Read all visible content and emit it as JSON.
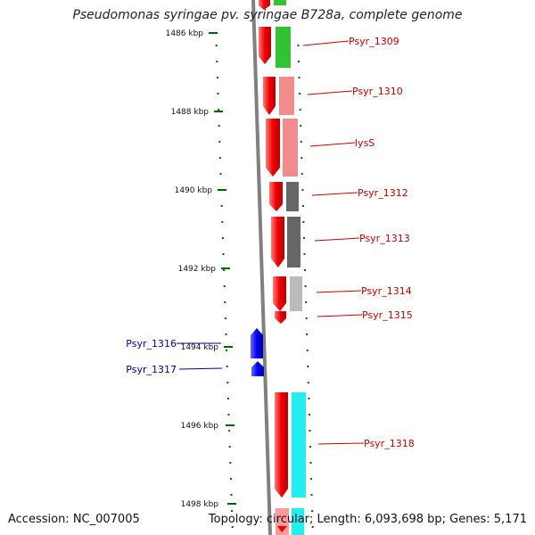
{
  "title": "Pseudomonas syringae pv. syringae B728a, complete genome",
  "accession": "Accession: NC_007005",
  "topology": "Topology: circular; Length: 6,093,698 bp; Genes: 5,171",
  "ticks": [
    "1486 kbp",
    "1488 kbp",
    "1490 kbp",
    "1492 kbp",
    "1494 kbp",
    "1496 kbp",
    "1498 kbp"
  ],
  "genes": [
    {
      "label": "Psyr_1309",
      "strand": "+",
      "color": "#33c233"
    },
    {
      "label": "Psyr_1310",
      "strand": "+",
      "color": "#f08c8c"
    },
    {
      "label": "lysS",
      "strand": "+",
      "color": "#f08c8c"
    },
    {
      "label": "Psyr_1312",
      "strand": "+",
      "color": "#666666"
    },
    {
      "label": "Psyr_1313",
      "strand": "+",
      "color": "#666666"
    },
    {
      "label": "Psyr_1314",
      "strand": "+",
      "color": "#bbbbbb"
    },
    {
      "label": "Psyr_1315",
      "strand": "+",
      "color": ""
    },
    {
      "label": "Psyr_1316",
      "strand": "-",
      "color": "#0000ee"
    },
    {
      "label": "Psyr_1317",
      "strand": "-",
      "color": "#0000ee"
    },
    {
      "label": "Psyr_1318",
      "strand": "+",
      "color": "#22f0f0"
    }
  ],
  "colors": {
    "forward_gene": "#ee0000",
    "reverse_gene": "#0000ee",
    "backbone": "#808080",
    "tick": "#006600",
    "label_forward": "#cc0000",
    "label_reverse": "#000099"
  }
}
